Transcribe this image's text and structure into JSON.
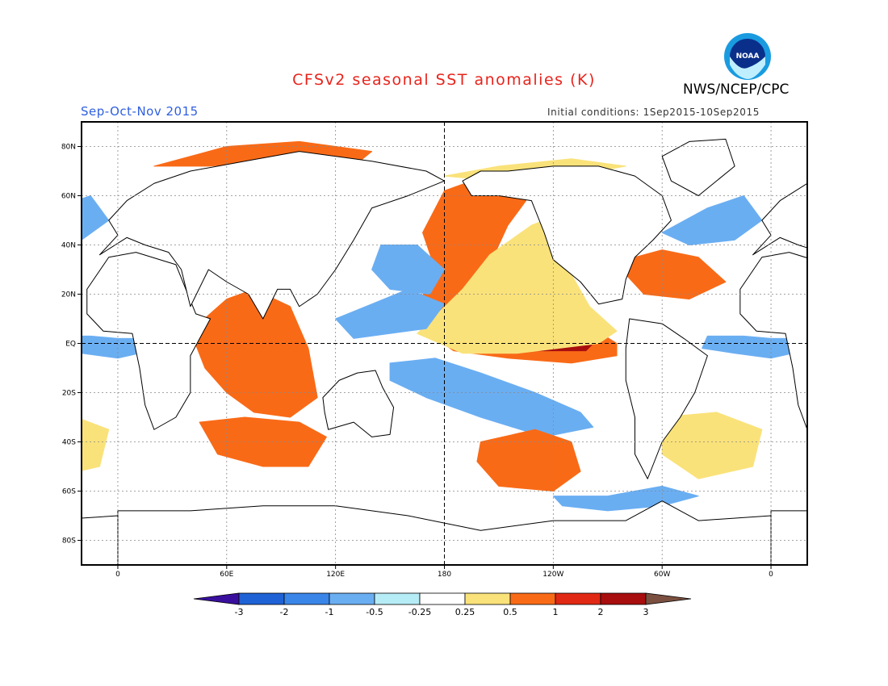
{
  "title": "CFSv2 seasonal SST anomalies (K)",
  "period": "Sep-Oct-Nov 2015",
  "agency": "NWS/NCEP/CPC",
  "initial_conditions": "Initial conditions: 1Sep2015-10Sep2015",
  "logo_text": "NOAA",
  "logo_name": "noaa-logo",
  "map": {
    "lon_range": [
      -20,
      20
    ],
    "lat_range": [
      -90,
      90
    ],
    "lat_ticks": [
      {
        "lat": 80,
        "label": "80N"
      },
      {
        "lat": 60,
        "label": "60N"
      },
      {
        "lat": 40,
        "label": "40N"
      },
      {
        "lat": 20,
        "label": "20N"
      },
      {
        "lat": 0,
        "label": "EQ"
      },
      {
        "lat": -20,
        "label": "20S"
      },
      {
        "lat": -40,
        "label": "40S"
      },
      {
        "lat": -60,
        "label": "60S"
      },
      {
        "lat": -80,
        "label": "80S"
      }
    ],
    "lon_ticks": [
      {
        "lon": 0,
        "label": "0"
      },
      {
        "lon": 60,
        "label": "60E"
      },
      {
        "lon": 120,
        "label": "120E"
      },
      {
        "lon": 180,
        "label": "180"
      },
      {
        "lon": 240,
        "label": "120W"
      },
      {
        "lon": 300,
        "label": "60W"
      },
      {
        "lon": 360,
        "label": "0"
      }
    ],
    "reference_lines": [
      "equator",
      "dateline"
    ]
  },
  "colorbar": {
    "levels": [
      "-3",
      "-2",
      "-1",
      "-0.5",
      "-0.25",
      "0.25",
      "0.5",
      "1",
      "2",
      "3"
    ],
    "colors": [
      "#3a0f9e",
      "#1f62d6",
      "#3a86e8",
      "#6aaef2",
      "#b6ecf6",
      "#ffffff",
      "#fae27a",
      "#f96a17",
      "#e02814",
      "#a80e0e",
      "#7b5040"
    ]
  },
  "anomaly_regions": [
    {
      "name": "eq-pacific-warm",
      "level": 2,
      "polygon": [
        [
          170,
          5
        ],
        [
          200,
          8
        ],
        [
          235,
          12
        ],
        [
          262,
          6
        ],
        [
          275,
          0
        ],
        [
          275,
          -5
        ],
        [
          250,
          -8
        ],
        [
          215,
          -6
        ],
        [
          185,
          -3
        ]
      ]
    },
    {
      "name": "eq-pacific-strong",
      "level": 3,
      "polygon": [
        [
          195,
          2
        ],
        [
          225,
          3
        ],
        [
          250,
          2
        ],
        [
          262,
          0
        ],
        [
          258,
          -3
        ],
        [
          230,
          -3
        ],
        [
          200,
          -1
        ]
      ]
    },
    {
      "name": "nino3-core",
      "level": 4,
      "polygon": [
        [
          228,
          0.6
        ],
        [
          245,
          0.6
        ],
        [
          253,
          0
        ],
        [
          246,
          -1.5
        ],
        [
          230,
          -1.5
        ],
        [
          225,
          -0.5
        ]
      ]
    },
    {
      "name": "ne-pacific-warm",
      "level": 2,
      "polygon": [
        [
          172,
          2
        ],
        [
          190,
          18
        ],
        [
          205,
          32
        ],
        [
          215,
          48
        ],
        [
          225,
          58
        ],
        [
          212,
          62
        ],
        [
          195,
          66
        ],
        [
          180,
          62
        ],
        [
          168,
          45
        ],
        [
          175,
          30
        ],
        [
          165,
          15
        ]
      ]
    },
    {
      "name": "ne-pacific-coastal",
      "level": 1,
      "polygon": [
        [
          165,
          4
        ],
        [
          190,
          22
        ],
        [
          205,
          36
        ],
        [
          228,
          48
        ],
        [
          235,
          50
        ],
        [
          240,
          40
        ],
        [
          250,
          28
        ],
        [
          260,
          15
        ],
        [
          275,
          5
        ],
        [
          265,
          0
        ],
        [
          220,
          -4
        ],
        [
          190,
          -4
        ]
      ]
    },
    {
      "name": "nw-pacific-cool",
      "level": -1,
      "polygon": [
        [
          145,
          40
        ],
        [
          165,
          40
        ],
        [
          180,
          30
        ],
        [
          172,
          20
        ],
        [
          150,
          22
        ],
        [
          140,
          30
        ]
      ]
    },
    {
      "name": "west-pacific-cool",
      "level": -1,
      "polygon": [
        [
          120,
          10
        ],
        [
          140,
          16
        ],
        [
          160,
          22
        ],
        [
          180,
          16
        ],
        [
          170,
          6
        ],
        [
          150,
          4
        ],
        [
          130,
          2
        ]
      ]
    },
    {
      "name": "sw-pacific-cool",
      "level": -1,
      "polygon": [
        [
          150,
          -8
        ],
        [
          175,
          -6
        ],
        [
          200,
          -12
        ],
        [
          230,
          -20
        ],
        [
          255,
          -28
        ],
        [
          262,
          -34
        ],
        [
          235,
          -38
        ],
        [
          200,
          -30
        ],
        [
          170,
          -22
        ],
        [
          150,
          -15
        ]
      ]
    },
    {
      "name": "s-pacific-warm",
      "level": 2,
      "polygon": [
        [
          200,
          -40
        ],
        [
          230,
          -35
        ],
        [
          250,
          -40
        ],
        [
          255,
          -52
        ],
        [
          240,
          -60
        ],
        [
          210,
          -58
        ],
        [
          198,
          -48
        ]
      ]
    },
    {
      "name": "indian-warm",
      "level": 2,
      "polygon": [
        [
          40,
          5
        ],
        [
          60,
          18
        ],
        [
          75,
          22
        ],
        [
          95,
          15
        ],
        [
          105,
          -2
        ],
        [
          110,
          -22
        ],
        [
          95,
          -30
        ],
        [
          75,
          -28
        ],
        [
          60,
          -20
        ],
        [
          48,
          -10
        ]
      ]
    },
    {
      "name": "s-indian-warm",
      "level": 2,
      "polygon": [
        [
          45,
          -32
        ],
        [
          70,
          -30
        ],
        [
          100,
          -32
        ],
        [
          115,
          -38
        ],
        [
          105,
          -50
        ],
        [
          80,
          -50
        ],
        [
          55,
          -45
        ]
      ]
    },
    {
      "name": "s-atlantic-warm",
      "level": 1,
      "polygon": [
        [
          300,
          -30
        ],
        [
          330,
          -28
        ],
        [
          355,
          -35
        ],
        [
          350,
          -50
        ],
        [
          320,
          -55
        ],
        [
          300,
          -45
        ]
      ]
    },
    {
      "name": "n-atlantic-warm",
      "level": 2,
      "polygon": [
        [
          285,
          35
        ],
        [
          300,
          38
        ],
        [
          320,
          35
        ],
        [
          335,
          25
        ],
        [
          315,
          18
        ],
        [
          290,
          20
        ],
        [
          280,
          28
        ]
      ]
    },
    {
      "name": "n-atlantic-cool",
      "level": -1,
      "polygon": [
        [
          300,
          45
        ],
        [
          325,
          55
        ],
        [
          345,
          60
        ],
        [
          355,
          50
        ],
        [
          340,
          42
        ],
        [
          315,
          40
        ]
      ]
    },
    {
      "name": "eq-atlantic-cool",
      "level": -1,
      "polygon": [
        [
          325,
          3
        ],
        [
          345,
          3
        ],
        [
          360,
          2
        ],
        [
          360,
          -6
        ],
        [
          340,
          -4
        ],
        [
          322,
          -2
        ]
      ]
    },
    {
      "name": "eq-atlantic-cool-east",
      "level": -1,
      "polygon": [
        [
          0,
          2
        ],
        [
          10,
          2
        ],
        [
          12,
          -4
        ],
        [
          0,
          -6
        ]
      ]
    },
    {
      "name": "arctic-warm",
      "level": 2,
      "polygon": [
        [
          20,
          72
        ],
        [
          60,
          80
        ],
        [
          100,
          82
        ],
        [
          140,
          78
        ],
        [
          130,
          72
        ],
        [
          90,
          74
        ],
        [
          50,
          72
        ]
      ]
    },
    {
      "name": "arctic-warm-east",
      "level": 1,
      "polygon": [
        [
          180,
          68
        ],
        [
          210,
          72
        ],
        [
          250,
          75
        ],
        [
          280,
          72
        ],
        [
          250,
          68
        ],
        [
          210,
          66
        ]
      ]
    },
    {
      "name": "southern-ocean-cool",
      "level": -1,
      "polygon": [
        [
          240,
          -62
        ],
        [
          270,
          -62
        ],
        [
          300,
          -58
        ],
        [
          320,
          -62
        ],
        [
          300,
          -66
        ],
        [
          270,
          -68
        ],
        [
          245,
          -66
        ]
      ]
    }
  ],
  "land": [
    {
      "name": "americas-north",
      "polygon": [
        [
          190,
          66
        ],
        [
          200,
          70
        ],
        [
          215,
          70
        ],
        [
          240,
          72
        ],
        [
          265,
          72
        ],
        [
          285,
          68
        ],
        [
          300,
          60
        ],
        [
          305,
          50
        ],
        [
          295,
          42
        ],
        [
          285,
          35
        ],
        [
          280,
          26
        ],
        [
          278,
          18
        ],
        [
          265,
          16
        ],
        [
          255,
          25
        ],
        [
          240,
          34
        ],
        [
          235,
          45
        ],
        [
          228,
          58
        ],
        [
          210,
          60
        ],
        [
          195,
          60
        ]
      ]
    },
    {
      "name": "americas-south",
      "polygon": [
        [
          282,
          10
        ],
        [
          300,
          8
        ],
        [
          312,
          2
        ],
        [
          325,
          -5
        ],
        [
          318,
          -20
        ],
        [
          310,
          -30
        ],
        [
          300,
          -40
        ],
        [
          292,
          -55
        ],
        [
          285,
          -45
        ],
        [
          285,
          -30
        ],
        [
          280,
          -15
        ],
        [
          280,
          -2
        ]
      ]
    },
    {
      "name": "africa",
      "polygon": [
        [
          -17,
          22
        ],
        [
          -5,
          35
        ],
        [
          10,
          37
        ],
        [
          32,
          32
        ],
        [
          43,
          12
        ],
        [
          51,
          10
        ],
        [
          40,
          -5
        ],
        [
          40,
          -20
        ],
        [
          32,
          -30
        ],
        [
          20,
          -35
        ],
        [
          15,
          -25
        ],
        [
          12,
          -10
        ],
        [
          8,
          4
        ],
        [
          -8,
          5
        ],
        [
          -17,
          12
        ]
      ]
    },
    {
      "name": "eurasia",
      "polygon": [
        [
          -10,
          36
        ],
        [
          0,
          44
        ],
        [
          -5,
          50
        ],
        [
          5,
          58
        ],
        [
          20,
          65
        ],
        [
          40,
          70
        ],
        [
          70,
          74
        ],
        [
          100,
          78
        ],
        [
          140,
          74
        ],
        [
          170,
          70
        ],
        [
          180,
          66
        ],
        [
          160,
          60
        ],
        [
          140,
          55
        ],
        [
          130,
          42
        ],
        [
          120,
          30
        ],
        [
          110,
          20
        ],
        [
          100,
          15
        ],
        [
          95,
          22
        ],
        [
          88,
          22
        ],
        [
          80,
          10
        ],
        [
          72,
          20
        ],
        [
          60,
          25
        ],
        [
          50,
          30
        ],
        [
          40,
          15
        ],
        [
          35,
          30
        ],
        [
          28,
          37
        ],
        [
          15,
          40
        ],
        [
          5,
          43
        ]
      ]
    },
    {
      "name": "australia",
      "polygon": [
        [
          113,
          -22
        ],
        [
          122,
          -15
        ],
        [
          132,
          -12
        ],
        [
          142,
          -11
        ],
        [
          146,
          -18
        ],
        [
          152,
          -26
        ],
        [
          150,
          -37
        ],
        [
          140,
          -38
        ],
        [
          130,
          -32
        ],
        [
          116,
          -35
        ],
        [
          114,
          -28
        ]
      ]
    },
    {
      "name": "greenland",
      "polygon": [
        [
          300,
          76
        ],
        [
          315,
          82
        ],
        [
          335,
          83
        ],
        [
          340,
          72
        ],
        [
          320,
          60
        ],
        [
          305,
          66
        ]
      ]
    },
    {
      "name": "antarctica",
      "polygon": [
        [
          0,
          -68
        ],
        [
          40,
          -68
        ],
        [
          80,
          -66
        ],
        [
          120,
          -66
        ],
        [
          160,
          -70
        ],
        [
          200,
          -76
        ],
        [
          240,
          -72
        ],
        [
          280,
          -72
        ],
        [
          300,
          -64
        ],
        [
          320,
          -72
        ],
        [
          360,
          -70
        ],
        [
          360,
          -90
        ],
        [
          0,
          -90
        ]
      ]
    }
  ]
}
